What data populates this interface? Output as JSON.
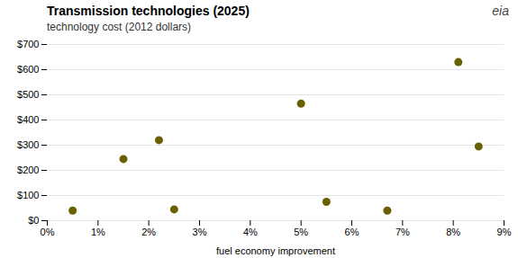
{
  "chart_data": {
    "type": "scatter",
    "title": "Transmission technologies (2025)",
    "subtitle": "technology cost (2012 dollars)",
    "xlabel": "fuel economy improvement",
    "annotations": [
      "eia"
    ],
    "x": [
      0.005,
      0.015,
      0.022,
      0.025,
      0.05,
      0.055,
      0.067,
      0.081,
      0.085
    ],
    "values": [
      40,
      245,
      320,
      45,
      465,
      75,
      40,
      630,
      295
    ],
    "color": "#6b6000",
    "xlim": [
      0,
      0.09
    ],
    "ylim": [
      0,
      700
    ],
    "xticks": [
      {
        "value": 0.0,
        "label": "0%"
      },
      {
        "value": 0.01,
        "label": "1%"
      },
      {
        "value": 0.02,
        "label": "2%"
      },
      {
        "value": 0.03,
        "label": "3%"
      },
      {
        "value": 0.04,
        "label": "4%"
      },
      {
        "value": 0.05,
        "label": "5%"
      },
      {
        "value": 0.06,
        "label": "6%"
      },
      {
        "value": 0.07,
        "label": "7%"
      },
      {
        "value": 0.08,
        "label": "8%"
      },
      {
        "value": 0.09,
        "label": "9%"
      }
    ],
    "yticks": [
      {
        "value": 0,
        "label": "$0"
      },
      {
        "value": 100,
        "label": "$100"
      },
      {
        "value": 200,
        "label": "$200"
      },
      {
        "value": 300,
        "label": "$300"
      },
      {
        "value": 400,
        "label": "$400"
      },
      {
        "value": 500,
        "label": "$500"
      },
      {
        "value": 600,
        "label": "$600"
      },
      {
        "value": 700,
        "label": "$700"
      }
    ],
    "grid": "y"
  }
}
